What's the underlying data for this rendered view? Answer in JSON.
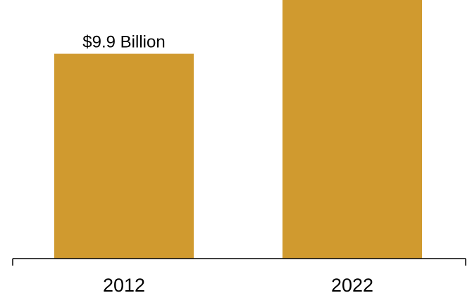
{
  "chart_data": {
    "type": "bar",
    "categories": [
      "2012",
      "2022"
    ],
    "values": [
      9.9,
      12.5
    ],
    "data_labels": [
      "$9.9 Billion",
      ""
    ],
    "title": "",
    "xlabel": "",
    "ylabel": "",
    "ylim": [
      0,
      12.5
    ],
    "grid": false,
    "legend": "none",
    "bar_color": "#D09A2F",
    "axis_color": "#000000"
  }
}
